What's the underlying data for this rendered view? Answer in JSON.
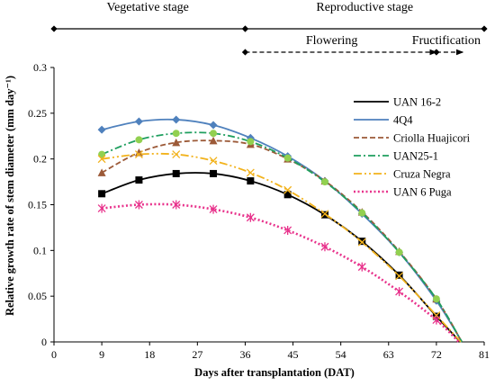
{
  "chart_data": {
    "type": "line",
    "xlabel": "Days after transplantation (DAT)",
    "ylabel": "Relative growth rate of stem diameter (mm day⁻¹)",
    "xlim": [
      0,
      81
    ],
    "ylim": [
      0,
      0.3
    ],
    "xticks": [
      0,
      9,
      18,
      27,
      36,
      45,
      54,
      63,
      72,
      81
    ],
    "yticks": [
      0,
      0.05,
      0.1,
      0.15,
      0.2,
      0.25,
      0.3
    ],
    "xtick_labels": [
      "0",
      "9",
      "18",
      "27",
      "36",
      "45",
      "54",
      "63",
      "72",
      "81"
    ],
    "ytick_labels": [
      "0",
      "0.05",
      "0.1",
      "0.15",
      "0.2",
      "0.25",
      "0.3"
    ],
    "grid": false,
    "legend_position": "right",
    "stages": [
      {
        "label": "Vegetative stage",
        "from": 0,
        "to": 36,
        "style": "solid"
      },
      {
        "label": "Reproductive stage",
        "from": 36,
        "to": 81,
        "style": "solid"
      },
      {
        "label": "Flowering",
        "from": 36,
        "to": 72,
        "style": "dashed"
      },
      {
        "label": "Fructification",
        "from": 72,
        "to": 77,
        "style": "dashed"
      }
    ],
    "series": [
      {
        "name": "UAN 16-2",
        "color": "#000000",
        "line_style": "solid",
        "marker": "square",
        "x": [
          9,
          16,
          23,
          30,
          37,
          44,
          51,
          58,
          65,
          72,
          76.5
        ],
        "y": [
          0.162,
          0.177,
          0.184,
          0.184,
          0.176,
          0.161,
          0.139,
          0.11,
          0.073,
          0.028,
          0
        ]
      },
      {
        "name": "4Q4",
        "color": "#4f81bd",
        "line_style": "solid",
        "marker": "diamond",
        "x": [
          9,
          16,
          23,
          30,
          37,
          44,
          51,
          58,
          65,
          72,
          76.8
        ],
        "y": [
          0.232,
          0.241,
          0.243,
          0.237,
          0.223,
          0.203,
          0.176,
          0.14,
          0.098,
          0.045,
          0
        ]
      },
      {
        "name": "Criolla Huajicori",
        "color": "#9c5a38",
        "line_style": "dashed",
        "marker": "triangle",
        "x": [
          9,
          16,
          23,
          30,
          37,
          44,
          51,
          58,
          65,
          72,
          76.8
        ],
        "y": [
          0.185,
          0.207,
          0.218,
          0.22,
          0.216,
          0.2,
          0.176,
          0.142,
          0.099,
          0.047,
          0
        ]
      },
      {
        "name": "UAN25-1",
        "color": "#1f9f5f",
        "line_style": "dashdot",
        "marker": "circle",
        "x": [
          9,
          16,
          23,
          30,
          37,
          44,
          51,
          58,
          65,
          72,
          76.8
        ],
        "y": [
          0.205,
          0.221,
          0.228,
          0.228,
          0.219,
          0.201,
          0.175,
          0.141,
          0.098,
          0.047,
          0
        ]
      },
      {
        "name": "Cruza Negra",
        "color": "#f2b21b",
        "line_style": "dashdotdot",
        "marker": "x",
        "x": [
          9,
          16,
          23,
          30,
          37,
          44,
          51,
          58,
          65,
          72,
          76.6
        ],
        "y": [
          0.2,
          0.205,
          0.205,
          0.198,
          0.185,
          0.166,
          0.14,
          0.109,
          0.072,
          0.029,
          0
        ]
      },
      {
        "name": "UAN 6 Puga",
        "color": "#e8338c",
        "line_style": "dotted",
        "marker": "star",
        "x": [
          9,
          16,
          23,
          30,
          37,
          44,
          51,
          58,
          65,
          72,
          76.2
        ],
        "y": [
          0.146,
          0.15,
          0.15,
          0.145,
          0.136,
          0.122,
          0.104,
          0.082,
          0.055,
          0.024,
          0
        ]
      }
    ]
  }
}
